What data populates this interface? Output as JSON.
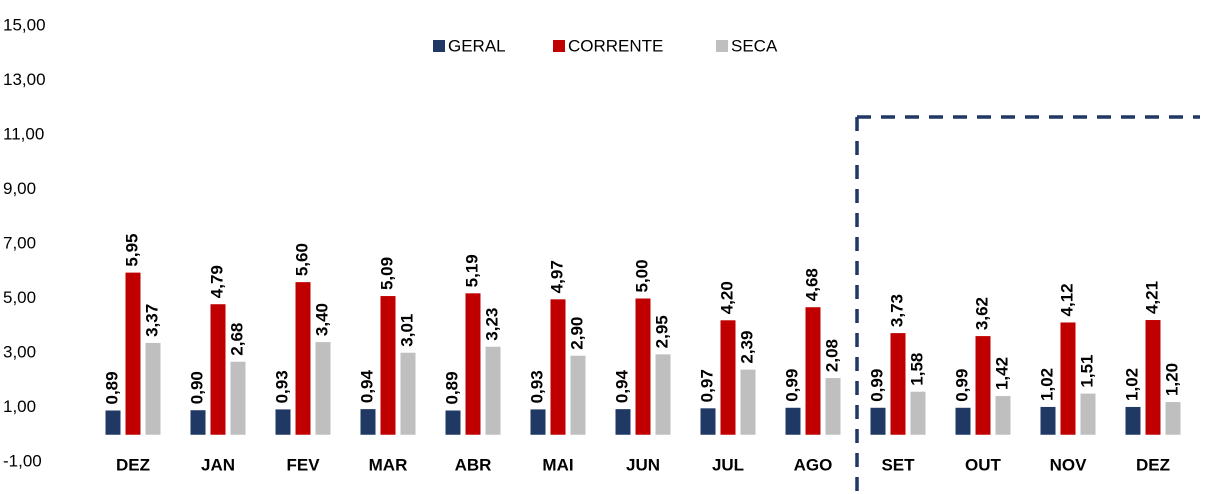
{
  "chart_data": {
    "type": "bar",
    "categories": [
      "DEZ",
      "JAN",
      "FEV",
      "MAR",
      "ABR",
      "MAI",
      "JUN",
      "JUL",
      "AGO",
      "SET",
      "OUT",
      "NOV",
      "DEZ"
    ],
    "series": [
      {
        "name": "GERAL",
        "color": "#1f3864",
        "values": [
          0.89,
          0.9,
          0.93,
          0.94,
          0.89,
          0.93,
          0.94,
          0.97,
          0.99,
          0.99,
          0.99,
          1.02,
          1.02
        ],
        "value_labels": [
          "0,89",
          "0,90",
          "0,93",
          "0,94",
          "0,89",
          "0,93",
          "0,94",
          "0,97",
          "0,99",
          "0,99",
          "0,99",
          "1,02",
          "1,02"
        ]
      },
      {
        "name": "CORRENTE",
        "color": "#c00000",
        "values": [
          5.95,
          4.79,
          5.6,
          5.09,
          5.19,
          4.97,
          5.0,
          4.2,
          4.68,
          3.73,
          3.62,
          4.12,
          4.21
        ],
        "value_labels": [
          "5,95",
          "4,79",
          "5,60",
          "5,09",
          "5,19",
          "4,97",
          "5,00",
          "4,20",
          "4,68",
          "3,73",
          "3,62",
          "4,12",
          "4,21"
        ]
      },
      {
        "name": "SECA",
        "color": "#bfbfbf",
        "values": [
          3.37,
          2.68,
          3.4,
          3.01,
          3.23,
          2.9,
          2.95,
          2.39,
          2.08,
          1.58,
          1.42,
          1.51,
          1.2
        ],
        "value_labels": [
          "3,37",
          "2,68",
          "3,40",
          "3,01",
          "3,23",
          "2,90",
          "2,95",
          "2,39",
          "2,08",
          "1,58",
          "1,42",
          "1,51",
          "1,20"
        ]
      }
    ],
    "ylim": [
      -1,
      15
    ],
    "yticks": [
      {
        "value": -1,
        "label": "-1,00"
      },
      {
        "value": 1,
        "label": "1,00"
      },
      {
        "value": 3,
        "label": "3,00"
      },
      {
        "value": 5,
        "label": "5,00"
      },
      {
        "value": 7,
        "label": "7,00"
      },
      {
        "value": 9,
        "label": "9,00"
      },
      {
        "value": 11,
        "label": "11,00"
      },
      {
        "value": 13,
        "label": "13,00"
      },
      {
        "value": 15,
        "label": "15,00"
      }
    ]
  }
}
